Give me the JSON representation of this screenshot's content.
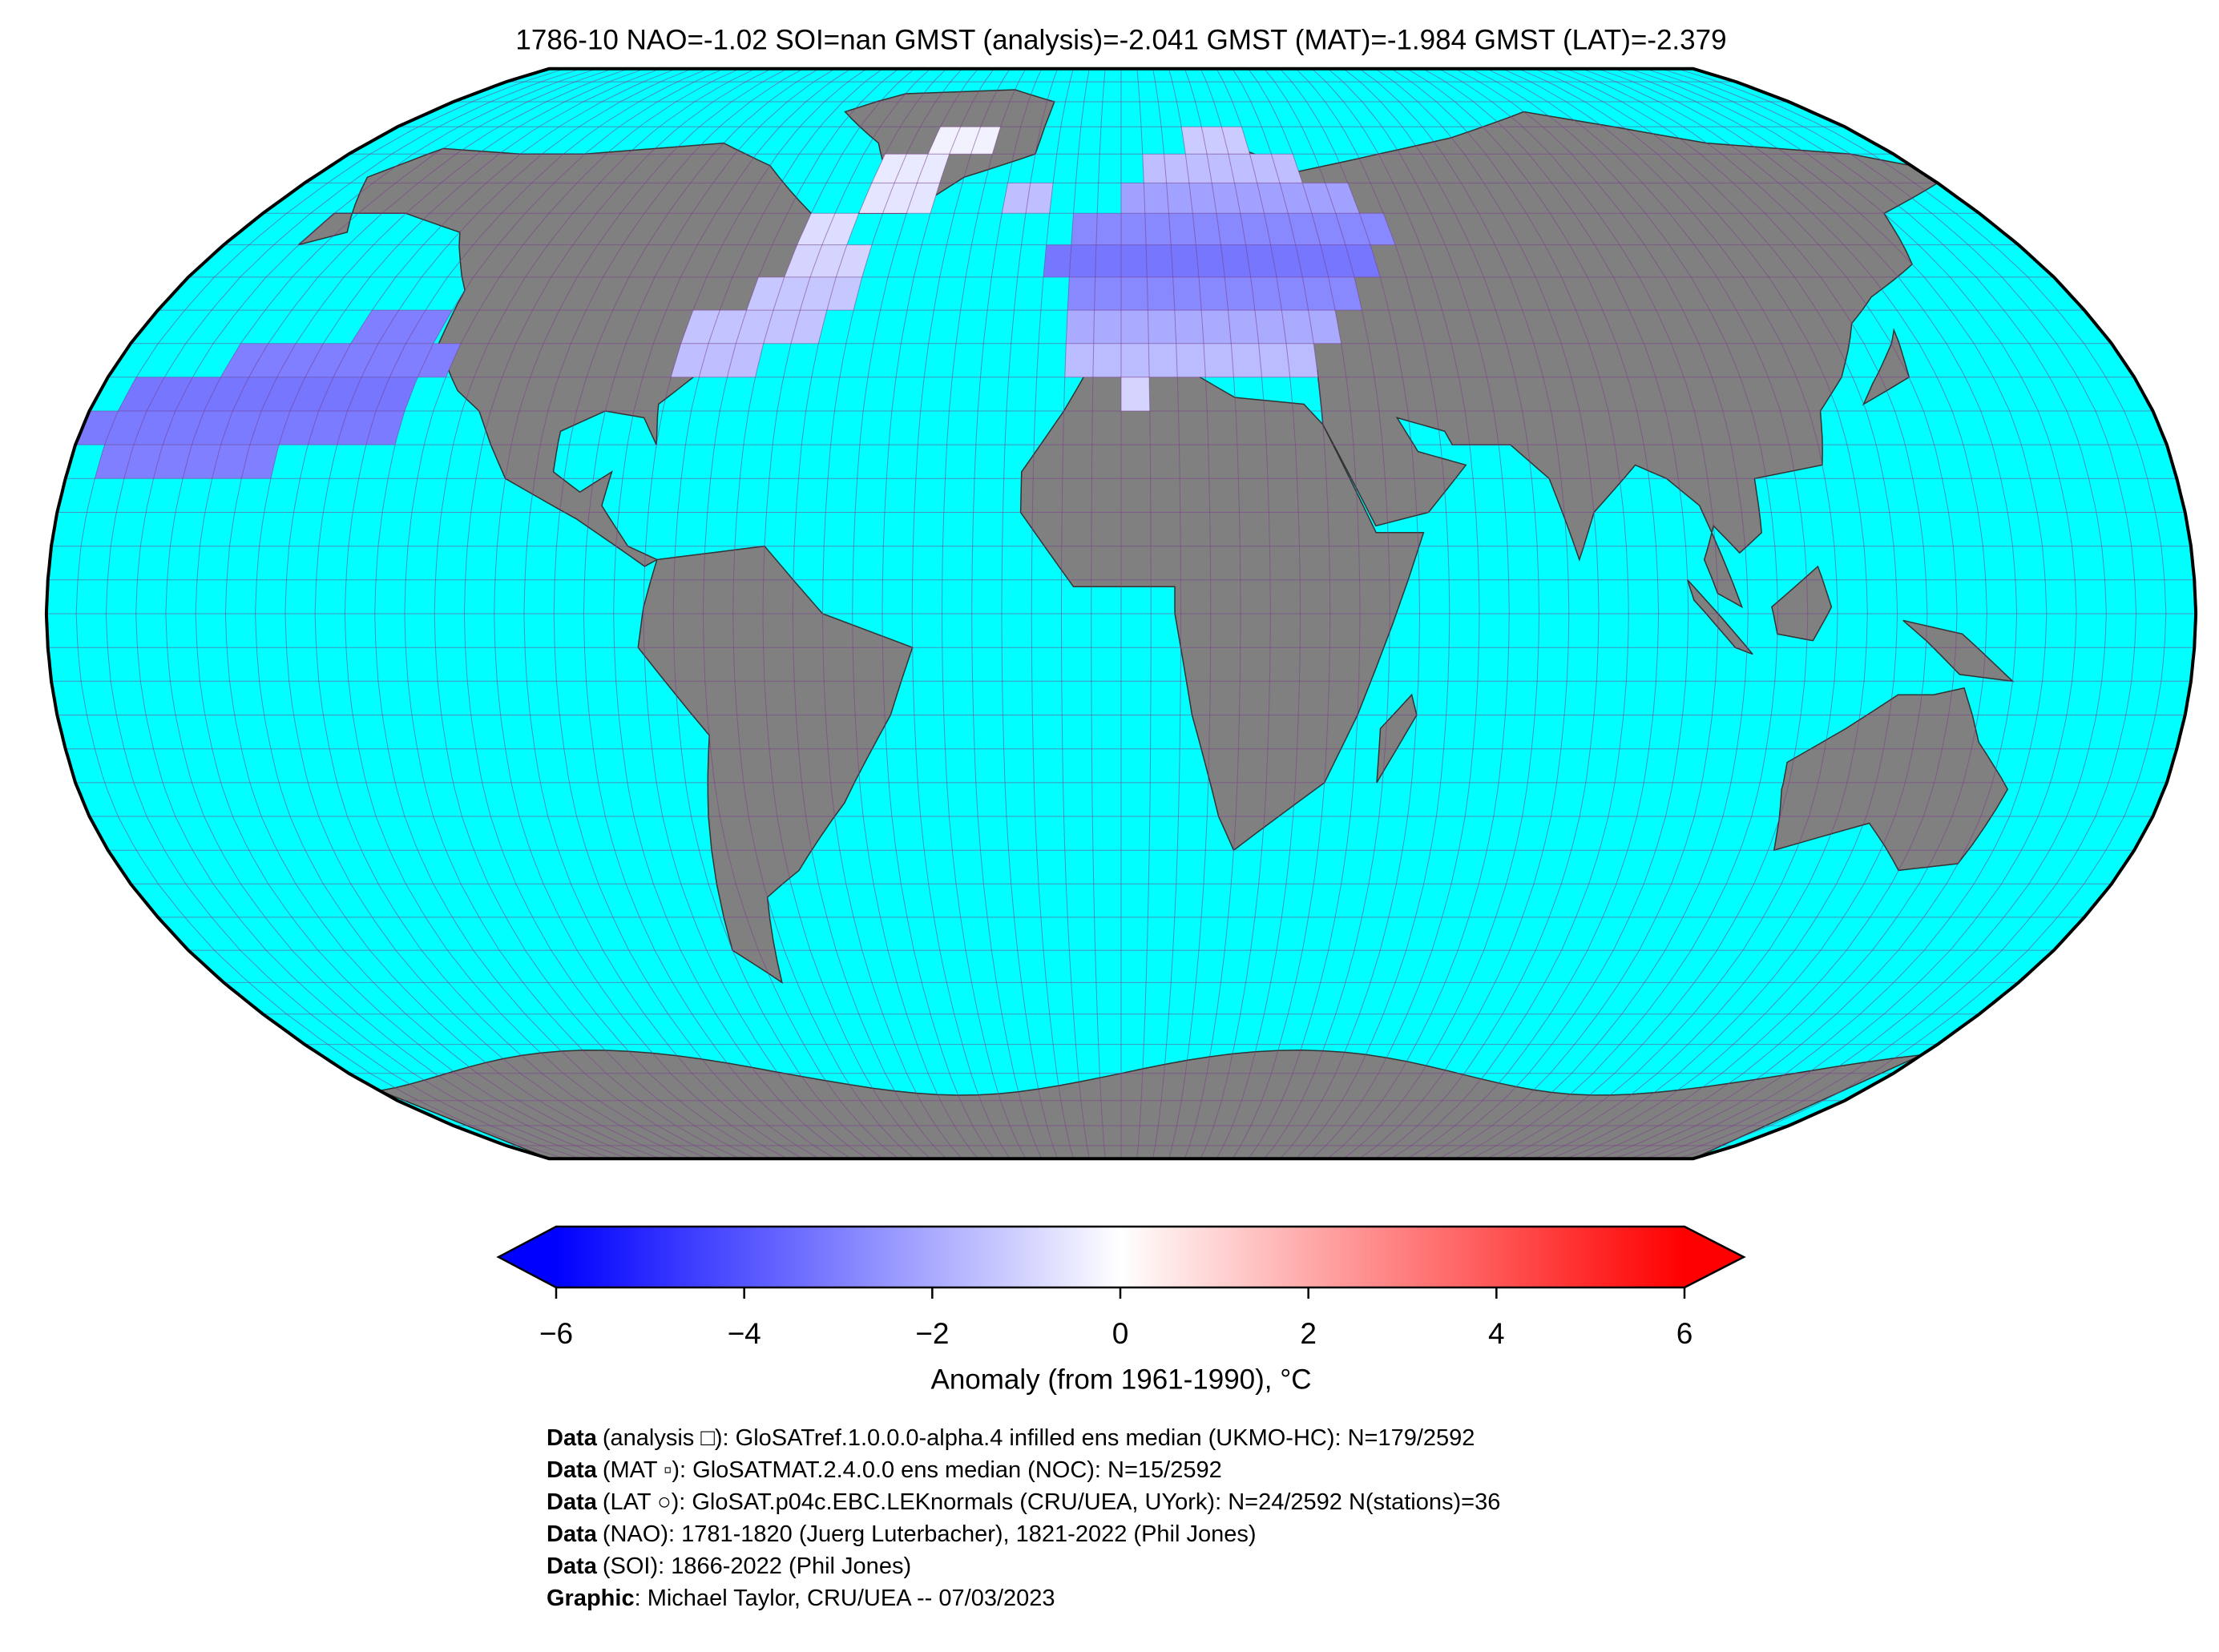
{
  "chart_data": {
    "type": "map",
    "title": "1786-10 NAO=-1.02 SOI=nan GMST (analysis)=-2.041 GMST (MAT)=-1.984 GMST (LAT)=-2.379",
    "projection": "robinson",
    "ocean_color": "#00ffff",
    "land_color": "#808080",
    "grid": true,
    "cmap": "bwr",
    "clim": [
      -6,
      6
    ],
    "cells": [
      {
        "lat": 40,
        "lon_from": -140,
        "lon_to": -125,
        "value": -3.0
      },
      {
        "lat": 35,
        "lon_from": -160,
        "lon_to": -120,
        "value": -3.0
      },
      {
        "lat": 30,
        "lon_from": -175,
        "lon_to": -125,
        "value": -3.2
      },
      {
        "lat": 25,
        "lon_from": -180,
        "lon_to": -125,
        "value": -3.1
      },
      {
        "lat": 20,
        "lon_from": -175,
        "lon_to": -145,
        "value": -3.0
      },
      {
        "lat": 35,
        "lon_from": -80,
        "lon_to": -65,
        "value": -1.5
      },
      {
        "lat": 40,
        "lon_from": -80,
        "lon_to": -55,
        "value": -1.4
      },
      {
        "lat": 45,
        "lon_from": -70,
        "lon_to": -50,
        "value": -1.3
      },
      {
        "lat": 50,
        "lon_from": -65,
        "lon_to": -50,
        "value": -1.0
      },
      {
        "lat": 55,
        "lon_from": -65,
        "lon_to": -55,
        "value": -0.8
      },
      {
        "lat": 60,
        "lon_from": -55,
        "lon_to": -40,
        "value": -0.6
      },
      {
        "lat": 65,
        "lon_from": -55,
        "lon_to": -40,
        "value": -0.5
      },
      {
        "lat": 70,
        "lon_from": -45,
        "lon_to": -30,
        "value": -0.3
      },
      {
        "lat": 60,
        "lon_from": -25,
        "lon_to": -15,
        "value": -1.5
      },
      {
        "lat": 30,
        "lon_from": 0,
        "lon_to": 5,
        "value": -1.0
      },
      {
        "lat": 35,
        "lon_from": -10,
        "lon_to": 35,
        "value": -1.6
      },
      {
        "lat": 40,
        "lon_from": -10,
        "lon_to": 40,
        "value": -2.0
      },
      {
        "lat": 45,
        "lon_from": -10,
        "lon_to": 45,
        "value": -2.8
      },
      {
        "lat": 50,
        "lon_from": -15,
        "lon_to": 50,
        "value": -3.2
      },
      {
        "lat": 55,
        "lon_from": -10,
        "lon_to": 55,
        "value": -2.8
      },
      {
        "lat": 60,
        "lon_from": 0,
        "lon_to": 50,
        "value": -2.2
      },
      {
        "lat": 65,
        "lon_from": 5,
        "lon_to": 40,
        "value": -1.5
      },
      {
        "lat": 70,
        "lon_from": 15,
        "lon_to": 30,
        "value": -1.2
      }
    ],
    "colorbar": {
      "label": "Anomaly (from 1961-1990), °C",
      "ticks": [
        {
          "value": -6,
          "label": "−6"
        },
        {
          "value": -4,
          "label": "−4"
        },
        {
          "value": -2,
          "label": "−2"
        },
        0,
        2,
        4,
        6
      ]
    }
  },
  "footer": {
    "lines": [
      {
        "label": "Data",
        "text": "(analysis □): GloSATref.1.0.0.0-alpha.4 infilled ens median (UKMO-HC): N=179/2592"
      },
      {
        "label": "Data",
        "text": "(MAT ▫): GloSATMAT.2.4.0.0 ens median (NOC): N=15/2592"
      },
      {
        "label": "Data",
        "text": "(LAT ○): GloSAT.p04c.EBC.LEKnormals (CRU/UEA, UYork): N=24/2592 N(stations)=36"
      },
      {
        "label": "Data",
        "text": "(NAO): 1781-1820 (Juerg Luterbacher), 1821-2022 (Phil Jones)"
      },
      {
        "label": "Data",
        "text": "(SOI): 1866-2022 (Phil Jones)"
      },
      {
        "label": "Graphic",
        "text": ": Michael Taylor, CRU/UEA -- 07/03/2023"
      }
    ]
  }
}
